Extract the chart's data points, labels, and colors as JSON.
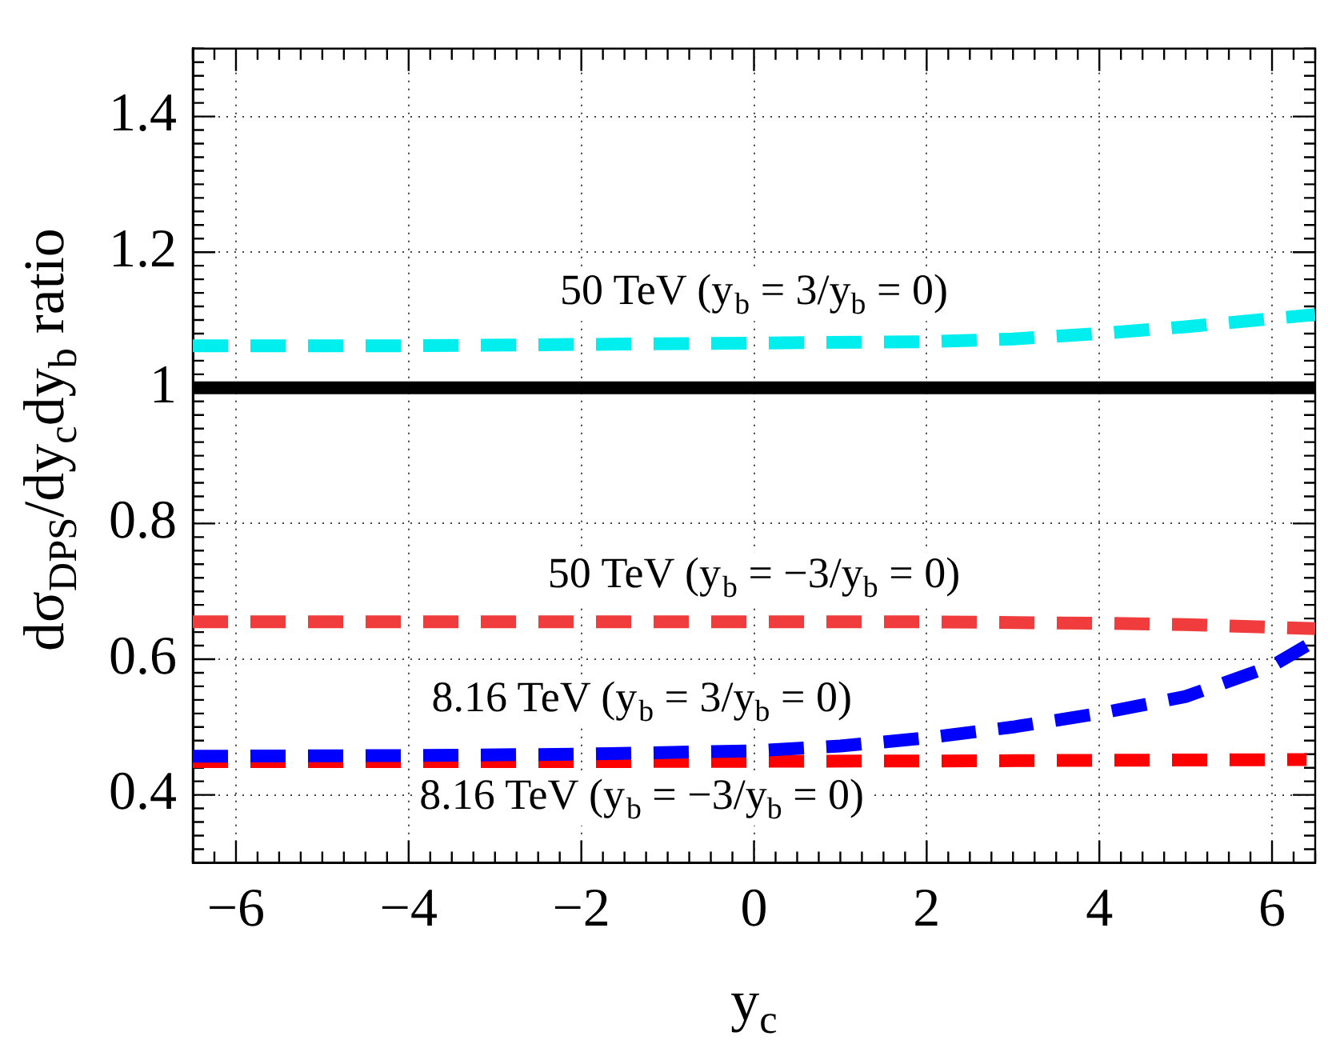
{
  "chart_data": {
    "type": "line",
    "xlabel": "y$_{c}$",
    "ylabel": "dσ$_{DPS}$/dy$_{c}$dy$_{b}$ ratio",
    "xlim": [
      -6.5,
      6.5
    ],
    "xticks": [
      -6,
      -4,
      -2,
      0,
      2,
      4,
      6
    ],
    "ylim": [
      0.3,
      1.5
    ],
    "yticks": [
      0.4,
      0.6,
      0.8,
      1,
      1.2,
      1.4
    ],
    "grid": true,
    "legend": false,
    "marker": "none",
    "ref_lines": [
      {
        "axis": "y",
        "value": 1,
        "color": "#000000",
        "line_style": "solid"
      }
    ],
    "series": [
      {
        "color": "#00eeee",
        "line_style": "dashed",
        "x": [
          -6.5,
          -4,
          -2,
          0,
          2,
          3,
          4,
          5,
          6.5
        ],
        "values": [
          1.062,
          1.062,
          1.064,
          1.066,
          1.068,
          1.072,
          1.08,
          1.09,
          1.108
        ]
      },
      {
        "color": "#f03c3c",
        "line_style": "dashed",
        "x": [
          -6.5,
          -2,
          2,
          4,
          5,
          6,
          6.5
        ],
        "values": [
          0.655,
          0.655,
          0.655,
          0.653,
          0.651,
          0.647,
          0.645
        ]
      },
      {
        "color": "#0000ff",
        "line_style": "dashed",
        "x": [
          -6.5,
          -4,
          -2,
          0,
          1,
          2,
          3,
          4,
          5,
          6,
          6.4
        ],
        "values": [
          0.457,
          0.458,
          0.46,
          0.465,
          0.472,
          0.484,
          0.5,
          0.52,
          0.545,
          0.59,
          0.62
        ]
      },
      {
        "color": "#ff0000",
        "line_style": "dashed",
        "x": [
          -6.5,
          -2,
          2,
          6.4
        ],
        "values": [
          0.449,
          0.449,
          0.45,
          0.452
        ]
      }
    ],
    "annotations": [
      "50 TeV (y$_{b}$ = 3/y$_{b}$ = 0)",
      "50 TeV (y$_{b}$ = −3/y$_{b}$ = 0)",
      "8.16 TeV (y$_{b}$ = 3/y$_{b}$ = 0)",
      "8.16 TeV (y$_{b}$ = −3/y$_{b}$ = 0)"
    ]
  }
}
